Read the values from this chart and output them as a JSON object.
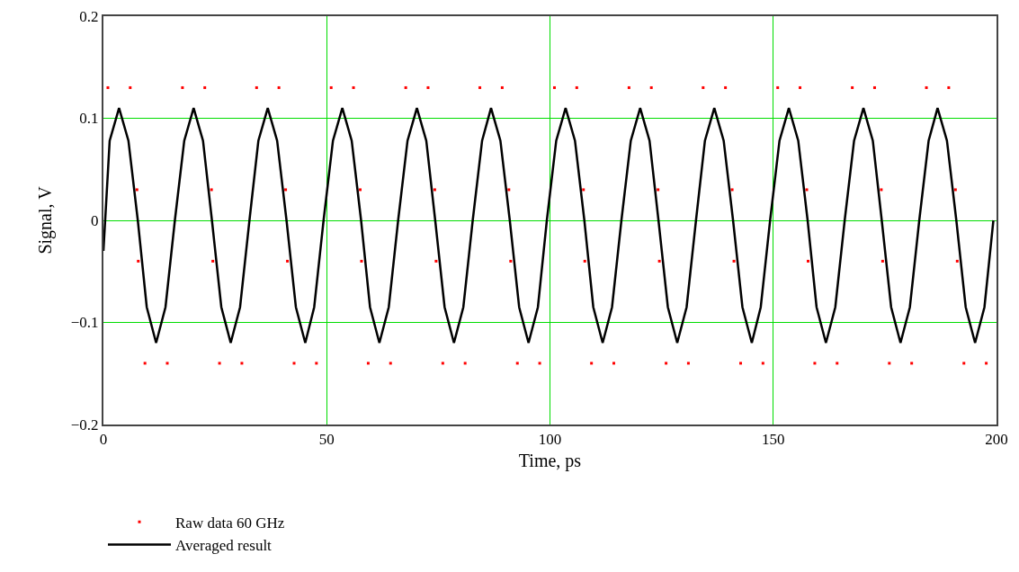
{
  "chart_data": {
    "type": "scatter",
    "xlabel": "Time, ps",
    "ylabel": "Signal, V",
    "xlim": [
      0,
      200
    ],
    "xticks": [
      0,
      50,
      100,
      150,
      200
    ],
    "ylim": [
      -0.2,
      0.2
    ],
    "yticks": [
      {
        "value": -0.2,
        "label": "−0.2"
      },
      {
        "value": -0.1,
        "label": "−0.1"
      },
      0,
      0.1,
      0.2
    ],
    "grid": true,
    "legend": "bottom left",
    "series": [
      {
        "name": "Raw data 60 GHz",
        "marker": "square",
        "color": "#ff0000",
        "x": [
          1.0,
          6.0,
          7.5,
          7.8,
          9.3,
          14.3,
          17.7,
          22.7,
          24.2,
          24.5,
          26.0,
          31.0,
          34.3,
          39.3,
          40.8,
          41.2,
          42.7,
          47.7,
          51.0,
          56.0,
          57.5,
          57.8,
          59.3,
          64.3,
          67.7,
          72.7,
          74.2,
          74.5,
          76.0,
          81.0,
          84.3,
          89.3,
          90.8,
          91.2,
          92.7,
          97.7,
          101.0,
          106.0,
          107.5,
          107.8,
          109.3,
          114.3,
          117.7,
          122.7,
          124.2,
          124.5,
          126.0,
          131.0,
          134.3,
          139.3,
          140.8,
          141.2,
          142.7,
          147.7,
          151.0,
          156.0,
          157.5,
          157.8,
          159.3,
          164.3,
          167.7,
          172.7,
          174.2,
          174.5,
          176.0,
          181.0,
          184.3,
          189.3,
          190.8,
          191.2,
          192.7,
          197.7
        ],
        "values": [
          0.13,
          0.13,
          0.03,
          -0.04,
          -0.14,
          -0.14,
          0.13,
          0.13,
          0.03,
          -0.04,
          -0.14,
          -0.14,
          0.13,
          0.13,
          0.03,
          -0.04,
          -0.14,
          -0.14,
          0.13,
          0.13,
          0.03,
          -0.04,
          -0.14,
          -0.14,
          0.13,
          0.13,
          0.03,
          -0.04,
          -0.14,
          -0.14,
          0.13,
          0.13,
          0.03,
          -0.04,
          -0.14,
          -0.14,
          0.13,
          0.13,
          0.03,
          -0.04,
          -0.14,
          -0.14,
          0.13,
          0.13,
          0.03,
          -0.04,
          -0.14,
          -0.14,
          0.13,
          0.13,
          0.03,
          -0.04,
          -0.14,
          -0.14,
          0.13,
          0.13,
          0.03,
          -0.04,
          -0.14,
          -0.14,
          0.13,
          0.13,
          0.03,
          -0.04,
          -0.14,
          -0.14,
          0.13,
          0.13,
          0.03,
          -0.04,
          -0.14,
          -0.14
        ]
      },
      {
        "name": "Averaged result",
        "type": "line",
        "marker": "none",
        "line_style": "solid",
        "color": "#000000",
        "x": [
          0,
          1.4,
          3.5,
          5.6,
          7.7,
          9.7,
          11.8,
          13.9,
          16.0,
          18.1,
          20.2,
          22.3,
          24.3,
          26.4,
          28.5,
          30.6,
          32.7,
          34.7,
          36.8,
          38.9,
          41.0,
          43.1,
          45.2,
          47.2,
          49.3,
          51.4,
          53.5,
          55.6,
          57.7,
          59.7,
          61.8,
          63.9,
          66.0,
          68.1,
          70.2,
          72.3,
          74.3,
          76.4,
          78.5,
          80.6,
          82.7,
          84.8,
          86.8,
          88.9,
          91.0,
          93.1,
          95.2,
          97.3,
          99.3,
          101.4,
          103.5,
          105.6,
          107.7,
          109.7,
          111.8,
          113.9,
          116.0,
          118.1,
          120.2,
          122.3,
          124.3,
          126.4,
          128.5,
          130.6,
          132.7,
          134.7,
          136.8,
          138.9,
          141.0,
          143.1,
          145.2,
          147.2,
          149.3,
          151.4,
          153.5,
          155.6,
          157.7,
          159.7,
          161.8,
          163.9,
          166.0,
          168.1,
          170.2,
          172.3,
          174.3,
          176.4,
          178.5,
          180.6,
          182.7,
          184.8,
          186.8,
          188.9,
          191.0,
          193.1,
          195.2,
          197.3,
          199.3
        ],
        "values": [
          -0.03,
          0.078,
          0.11,
          0.078,
          0,
          -0.085,
          -0.12,
          -0.085,
          0,
          0.078,
          0.11,
          0.078,
          0,
          -0.085,
          -0.12,
          -0.085,
          0,
          0.078,
          0.11,
          0.078,
          0,
          -0.085,
          -0.12,
          -0.085,
          0,
          0.078,
          0.11,
          0.078,
          0,
          -0.085,
          -0.12,
          -0.085,
          0,
          0.078,
          0.11,
          0.078,
          0,
          -0.085,
          -0.12,
          -0.085,
          0,
          0.078,
          0.11,
          0.078,
          0,
          -0.085,
          -0.12,
          -0.085,
          0,
          0.078,
          0.11,
          0.078,
          0,
          -0.085,
          -0.12,
          -0.085,
          0,
          0.078,
          0.11,
          0.078,
          0,
          -0.085,
          -0.12,
          -0.085,
          0,
          0.078,
          0.11,
          0.078,
          0,
          -0.085,
          -0.12,
          -0.085,
          0,
          0.078,
          0.11,
          0.078,
          0,
          -0.085,
          -0.12,
          -0.085,
          0,
          0.078,
          0.11,
          0.078,
          0,
          -0.085,
          -0.12,
          -0.085,
          0,
          0.078,
          0.11,
          0.078,
          0,
          -0.085,
          -0.12,
          -0.085,
          0
        ]
      }
    ]
  }
}
